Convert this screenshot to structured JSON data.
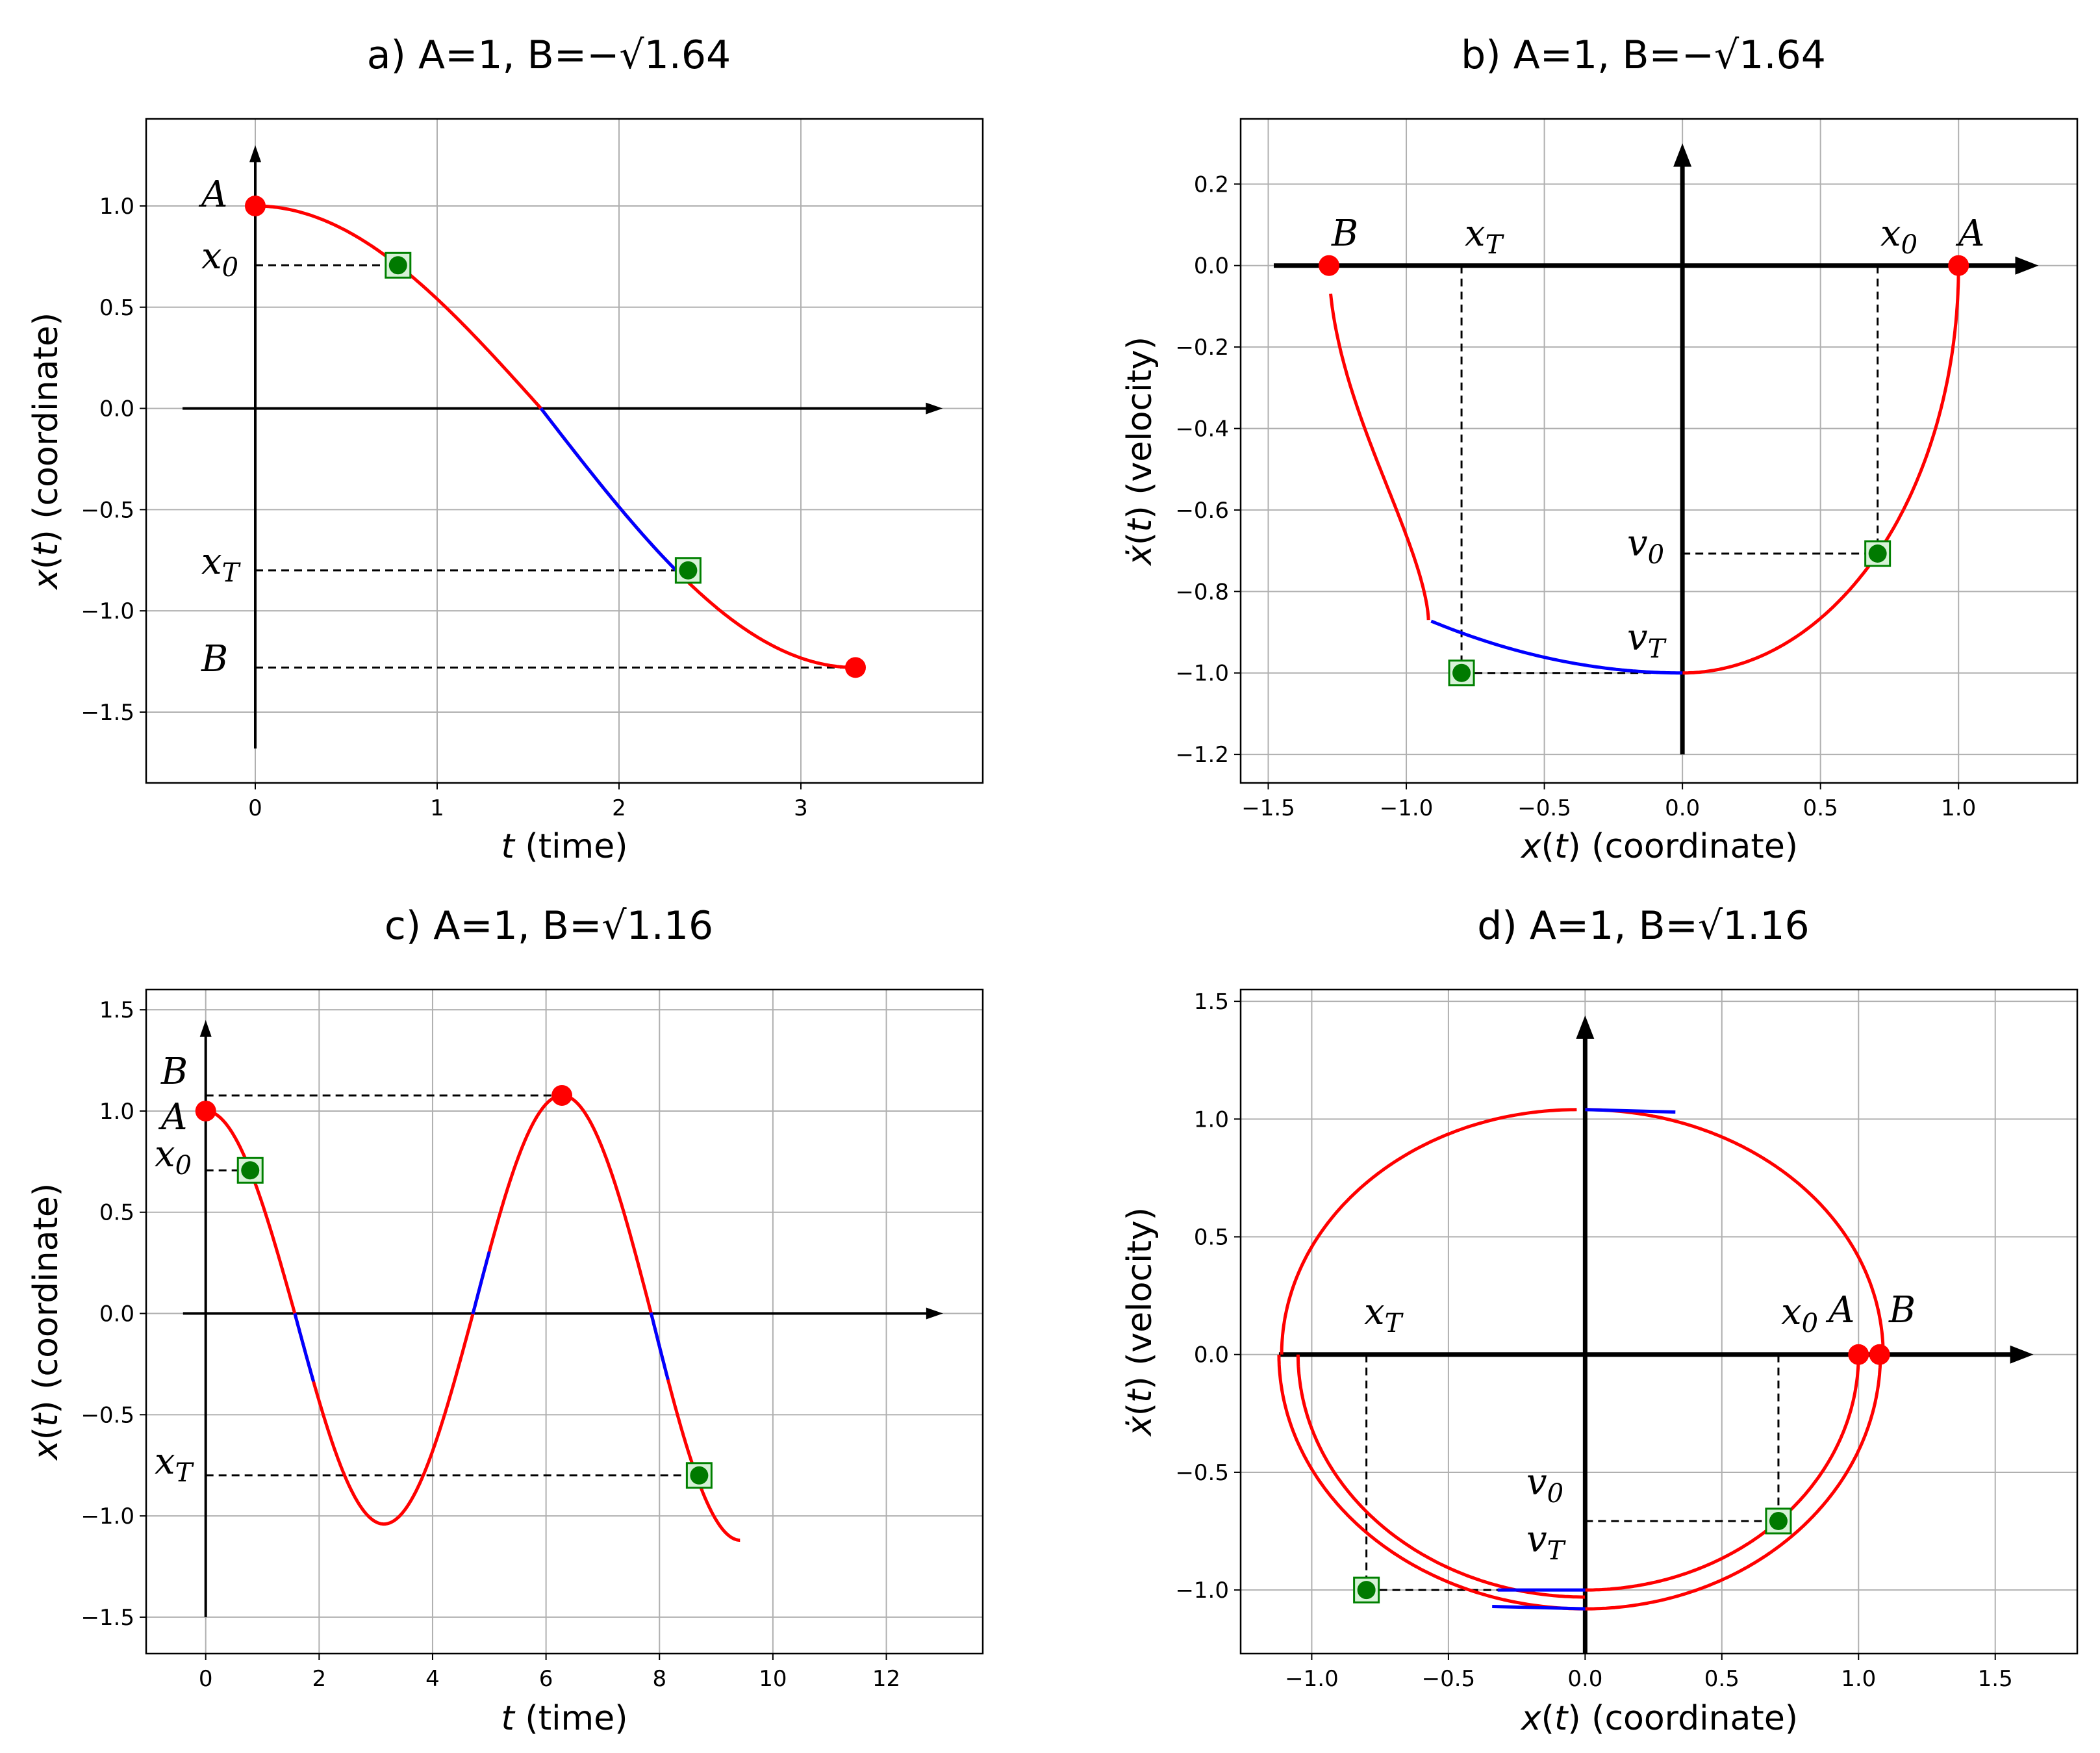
{
  "chart_data": [
    {
      "id": "a",
      "type": "line",
      "title": "a) A=1, B=−√1.64",
      "xlabel": "t (time)",
      "ylabel": "x(t)  (coordinate)",
      "xlim": [
        -0.6,
        4.0
      ],
      "ylim": [
        -1.85,
        1.43
      ],
      "xticks": [
        0,
        1,
        2,
        3
      ],
      "yticks": [
        -1.5,
        -1.0,
        -0.5,
        0.0,
        0.5,
        1.0
      ],
      "tick_labels_x": [
        "0",
        "1",
        "2",
        "3"
      ],
      "tick_labels_y": [
        "−1.5",
        "−1.0",
        "−0.5",
        "0.0",
        "0.5",
        "1.0"
      ],
      "grid": true,
      "series": [
        {
          "name": "trajectory",
          "color": "#ff0000",
          "x_range": [
            0,
            3.3
          ]
        },
        {
          "name": "highlighted",
          "color": "#0000ff",
          "x_range": [
            1.57,
            2.38
          ]
        }
      ],
      "red_points": [
        {
          "label": "A",
          "x": 0,
          "y": 1.0
        },
        {
          "label": "B",
          "x": 3.3,
          "y": -1.28
        }
      ],
      "green_points": [
        {
          "label": "x0",
          "x": 0.785,
          "y": 0.707
        },
        {
          "label": "xT",
          "x": 2.38,
          "y": -0.8
        }
      ],
      "annotations": [
        {
          "label": "A",
          "value": 1.0
        },
        {
          "label": "x0",
          "value": 0.707
        },
        {
          "label": "xT",
          "value": -0.8
        },
        {
          "label": "B",
          "value": -1.28
        }
      ]
    },
    {
      "id": "b",
      "type": "line",
      "title": "b) A=1, B=−√1.64",
      "xlabel": "x(t) (coordinate)",
      "ylabel": "ẋ(t) (velocity)",
      "xlim": [
        -1.6,
        1.43
      ],
      "ylim": [
        -1.27,
        0.36
      ],
      "xticks": [
        -1.5,
        -1.0,
        -0.5,
        0.0,
        0.5,
        1.0
      ],
      "yticks": [
        -1.2,
        -1.0,
        -0.8,
        -0.6,
        -0.4,
        -0.2,
        0.0,
        0.2
      ],
      "tick_labels_x": [
        "−1.5",
        "−1.0",
        "−0.5",
        "0.0",
        "0.5",
        "1.0"
      ],
      "tick_labels_y": [
        "−1.2",
        "−1.0",
        "−0.8",
        "−0.6",
        "−0.4",
        "−0.2",
        "0.0",
        "0.2"
      ],
      "grid": true,
      "red_points": [
        {
          "label": "A",
          "x": 1.0,
          "y": 0.0
        },
        {
          "label": "B",
          "x": -1.28,
          "y": 0.0
        }
      ],
      "green_points": [
        {
          "label": "x0,v0",
          "x": 0.707,
          "y": -0.707
        },
        {
          "label": "xT",
          "x": -0.8,
          "y": -1.0
        }
      ],
      "annotations": [
        {
          "label": "A",
          "x": 1.0
        },
        {
          "label": "B",
          "x": -1.28
        },
        {
          "label": "x0",
          "x": 0.707
        },
        {
          "label": "xT",
          "x": -0.8
        },
        {
          "label": "v0",
          "y": -0.707
        },
        {
          "label": "vT",
          "y": -1.0
        }
      ]
    },
    {
      "id": "c",
      "type": "line",
      "title": "c) A=1, B=√1.16",
      "xlabel": "t (time)",
      "ylabel": "x(t)  (coordinate)",
      "xlim": [
        -1.05,
        13.7
      ],
      "ylim": [
        -1.68,
        1.6
      ],
      "xticks": [
        0,
        2,
        4,
        6,
        8,
        10,
        12
      ],
      "yticks": [
        -1.5,
        -1.0,
        -0.5,
        0.0,
        0.5,
        1.0,
        1.5
      ],
      "tick_labels_x": [
        "0",
        "2",
        "4",
        "6",
        "8",
        "10",
        "12"
      ],
      "tick_labels_y": [
        "−1.5",
        "−1.0",
        "−0.5",
        "0.0",
        "0.5",
        "1.0",
        "1.5"
      ],
      "grid": true,
      "series": [
        {
          "name": "trajectory",
          "color": "#ff0000",
          "x_range": [
            0,
            9.42
          ]
        },
        {
          "name": "highlighted",
          "color": "#0000ff",
          "x_ranges": [
            [
              1.57,
              1.9
            ],
            [
              4.71,
              5.0
            ],
            [
              7.85,
              8.15
            ]
          ]
        }
      ],
      "red_points": [
        {
          "label": "A",
          "x": 0,
          "y": 1.0
        },
        {
          "label": "B",
          "x": 6.28,
          "y": 1.077
        }
      ],
      "green_points": [
        {
          "label": "x0",
          "x": 0.785,
          "y": 0.707
        },
        {
          "label": "xT",
          "x": 8.7,
          "y": -0.8
        }
      ],
      "annotations": [
        {
          "label": "B",
          "value": 1.077
        },
        {
          "label": "A",
          "value": 1.0
        },
        {
          "label": "x0",
          "value": 0.707
        },
        {
          "label": "xT",
          "value": -0.8
        }
      ]
    },
    {
      "id": "d",
      "type": "line",
      "title": "d) A=1, B=√1.16",
      "xlabel": "x(t) (coordinate)",
      "ylabel": "ẋ(t) (velocity)",
      "xlim": [
        -1.26,
        1.8
      ],
      "ylim": [
        -1.27,
        1.55
      ],
      "xticks": [
        -1.0,
        -0.5,
        0.0,
        0.5,
        1.0,
        1.5
      ],
      "yticks": [
        -1.0,
        -0.5,
        0.0,
        0.5,
        1.0,
        1.5
      ],
      "tick_labels_x": [
        "−1.0",
        "−0.5",
        "0.0",
        "0.5",
        "1.0",
        "1.5"
      ],
      "tick_labels_y": [
        "−1.0",
        "−0.5",
        "0.0",
        "0.5",
        "1.0",
        "1.5"
      ],
      "grid": true,
      "red_points": [
        {
          "label": "A",
          "x": 1.0,
          "y": 0.0
        },
        {
          "label": "B",
          "x": 1.077,
          "y": 0.0
        }
      ],
      "green_points": [
        {
          "label": "x0,v0",
          "x": 0.707,
          "y": -0.707
        },
        {
          "label": "xT",
          "x": -0.8,
          "y": -1.0
        }
      ],
      "annotations": [
        {
          "label": "A",
          "x": 1.0
        },
        {
          "label": "B",
          "x": 1.077
        },
        {
          "label": "x0",
          "x": 0.707
        },
        {
          "label": "xT",
          "x": -0.8
        },
        {
          "label": "v0",
          "y": -0.707
        },
        {
          "label": "vT",
          "y": -1.0
        }
      ]
    }
  ]
}
